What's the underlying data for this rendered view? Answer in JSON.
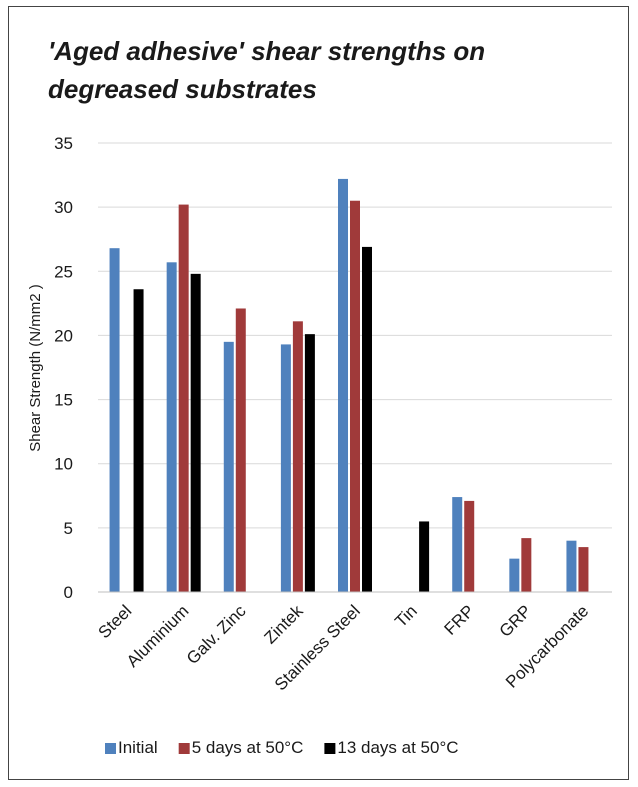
{
  "chart_data": {
    "type": "bar",
    "title_lines": [
      "'Aged adhesive' shear strengths on",
      "degreased substrates"
    ],
    "ylabel": "Shear Strength (N/mm2 )",
    "xlabel": "",
    "ylim": [
      0,
      35
    ],
    "yticks": [
      0,
      5,
      10,
      15,
      20,
      25,
      30,
      35
    ],
    "grid": true,
    "legend_position": "bottom",
    "categories": [
      "Steel",
      "Aluminium",
      "Galv. Zinc",
      "Zintek",
      "Stainless Steel",
      "Tin",
      "FRP",
      "GRP",
      "Polycarbonate"
    ],
    "series": [
      {
        "name": "Initial",
        "color": "#4F81BD",
        "values": [
          26.8,
          25.7,
          19.5,
          19.3,
          32.2,
          null,
          7.4,
          2.6,
          4.0
        ]
      },
      {
        "name": "5 days at 50°C",
        "color": "#A03A3A",
        "values": [
          null,
          30.2,
          22.1,
          21.1,
          30.5,
          null,
          7.1,
          4.2,
          3.5
        ]
      },
      {
        "name": "13 days at 50°C",
        "color": "#000000",
        "values": [
          23.6,
          24.8,
          null,
          20.1,
          26.9,
          5.5,
          null,
          null,
          null
        ]
      }
    ]
  }
}
